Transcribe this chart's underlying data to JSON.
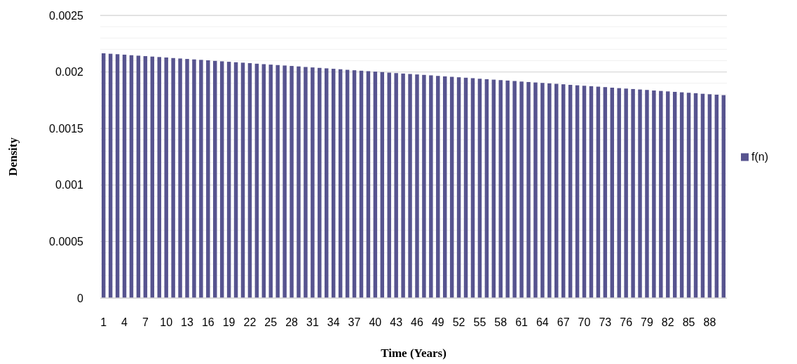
{
  "chart_data": {
    "type": "bar",
    "xlabel": "Time (Years)",
    "ylabel": "Density",
    "categories": [
      "1",
      null,
      null,
      "4",
      null,
      null,
      "7",
      null,
      null,
      "10",
      null,
      null,
      "13",
      null,
      null,
      "16",
      null,
      null,
      "19",
      null,
      null,
      "22",
      null,
      null,
      "25",
      null,
      null,
      "28",
      null,
      null,
      "31",
      null,
      null,
      "34",
      null,
      null,
      "37",
      null,
      null,
      "40",
      null,
      null,
      "43",
      null,
      null,
      "46",
      null,
      null,
      "49",
      null,
      null,
      "52",
      null,
      null,
      "55",
      null,
      null,
      "58",
      null,
      null,
      "61",
      null,
      null,
      "64",
      null,
      null,
      "67",
      null,
      null,
      "70",
      null,
      null,
      "73",
      null,
      null,
      "76",
      null,
      null,
      "79",
      null,
      null,
      "82",
      null,
      null,
      "85",
      null,
      null,
      "88",
      null,
      null
    ],
    "series": [
      {
        "name": "f(n)",
        "color": "#57548f",
        "values": [
          0.002165,
          0.002161,
          0.002157,
          0.002153,
          0.002148,
          0.002144,
          0.00214,
          0.002136,
          0.002132,
          0.002128,
          0.002123,
          0.002119,
          0.002115,
          0.002111,
          0.002107,
          0.002103,
          0.002098,
          0.002094,
          0.00209,
          0.002086,
          0.002082,
          0.002078,
          0.002073,
          0.002069,
          0.002065,
          0.002061,
          0.002057,
          0.002053,
          0.002049,
          0.002044,
          0.00204,
          0.002036,
          0.002032,
          0.002028,
          0.002024,
          0.002019,
          0.002015,
          0.002011,
          0.002007,
          0.002003,
          0.001999,
          0.001994,
          0.00199,
          0.001986,
          0.001982,
          0.001978,
          0.001974,
          0.00197,
          0.001965,
          0.001961,
          0.001957,
          0.001953,
          0.001949,
          0.001945,
          0.00194,
          0.001936,
          0.001932,
          0.001928,
          0.001924,
          0.00192,
          0.001915,
          0.001911,
          0.001907,
          0.001903,
          0.001899,
          0.001895,
          0.001891,
          0.001886,
          0.001882,
          0.001878,
          0.001874,
          0.00187,
          0.001866,
          0.001861,
          0.001857,
          0.001853,
          0.001849,
          0.001845,
          0.001841,
          0.001836,
          0.001832,
          0.001828,
          0.001824,
          0.00182,
          0.001816,
          0.001812,
          0.001807,
          0.001803,
          0.001799,
          0.001795
        ]
      }
    ],
    "ylim": [
      0,
      0.0025
    ],
    "yticks": [
      0,
      {
        "value": 0.0001,
        "label": null
      },
      {
        "value": 0.0002,
        "label": null
      },
      {
        "value": 0.0003,
        "label": null
      },
      {
        "value": 0.0004,
        "label": null
      },
      0.0005,
      {
        "value": 0.0006,
        "label": null
      },
      {
        "value": 0.0007,
        "label": null
      },
      {
        "value": 0.0008,
        "label": null
      },
      {
        "value": 0.0009,
        "label": null
      },
      0.001,
      {
        "value": 0.0011,
        "label": null
      },
      {
        "value": 0.0012,
        "label": null
      },
      {
        "value": 0.0013,
        "label": null
      },
      {
        "value": 0.0014,
        "label": null
      },
      0.0015,
      {
        "value": 0.0016,
        "label": null
      },
      {
        "value": 0.0017,
        "label": null
      },
      {
        "value": 0.0018,
        "label": null
      },
      {
        "value": 0.0019,
        "label": null
      },
      0.002,
      {
        "value": 0.0021,
        "label": null
      },
      {
        "value": 0.0022,
        "label": null
      },
      {
        "value": 0.0023,
        "label": null
      },
      {
        "value": 0.0024,
        "label": null
      },
      0.0025
    ],
    "grid": "y",
    "legend": "right"
  }
}
